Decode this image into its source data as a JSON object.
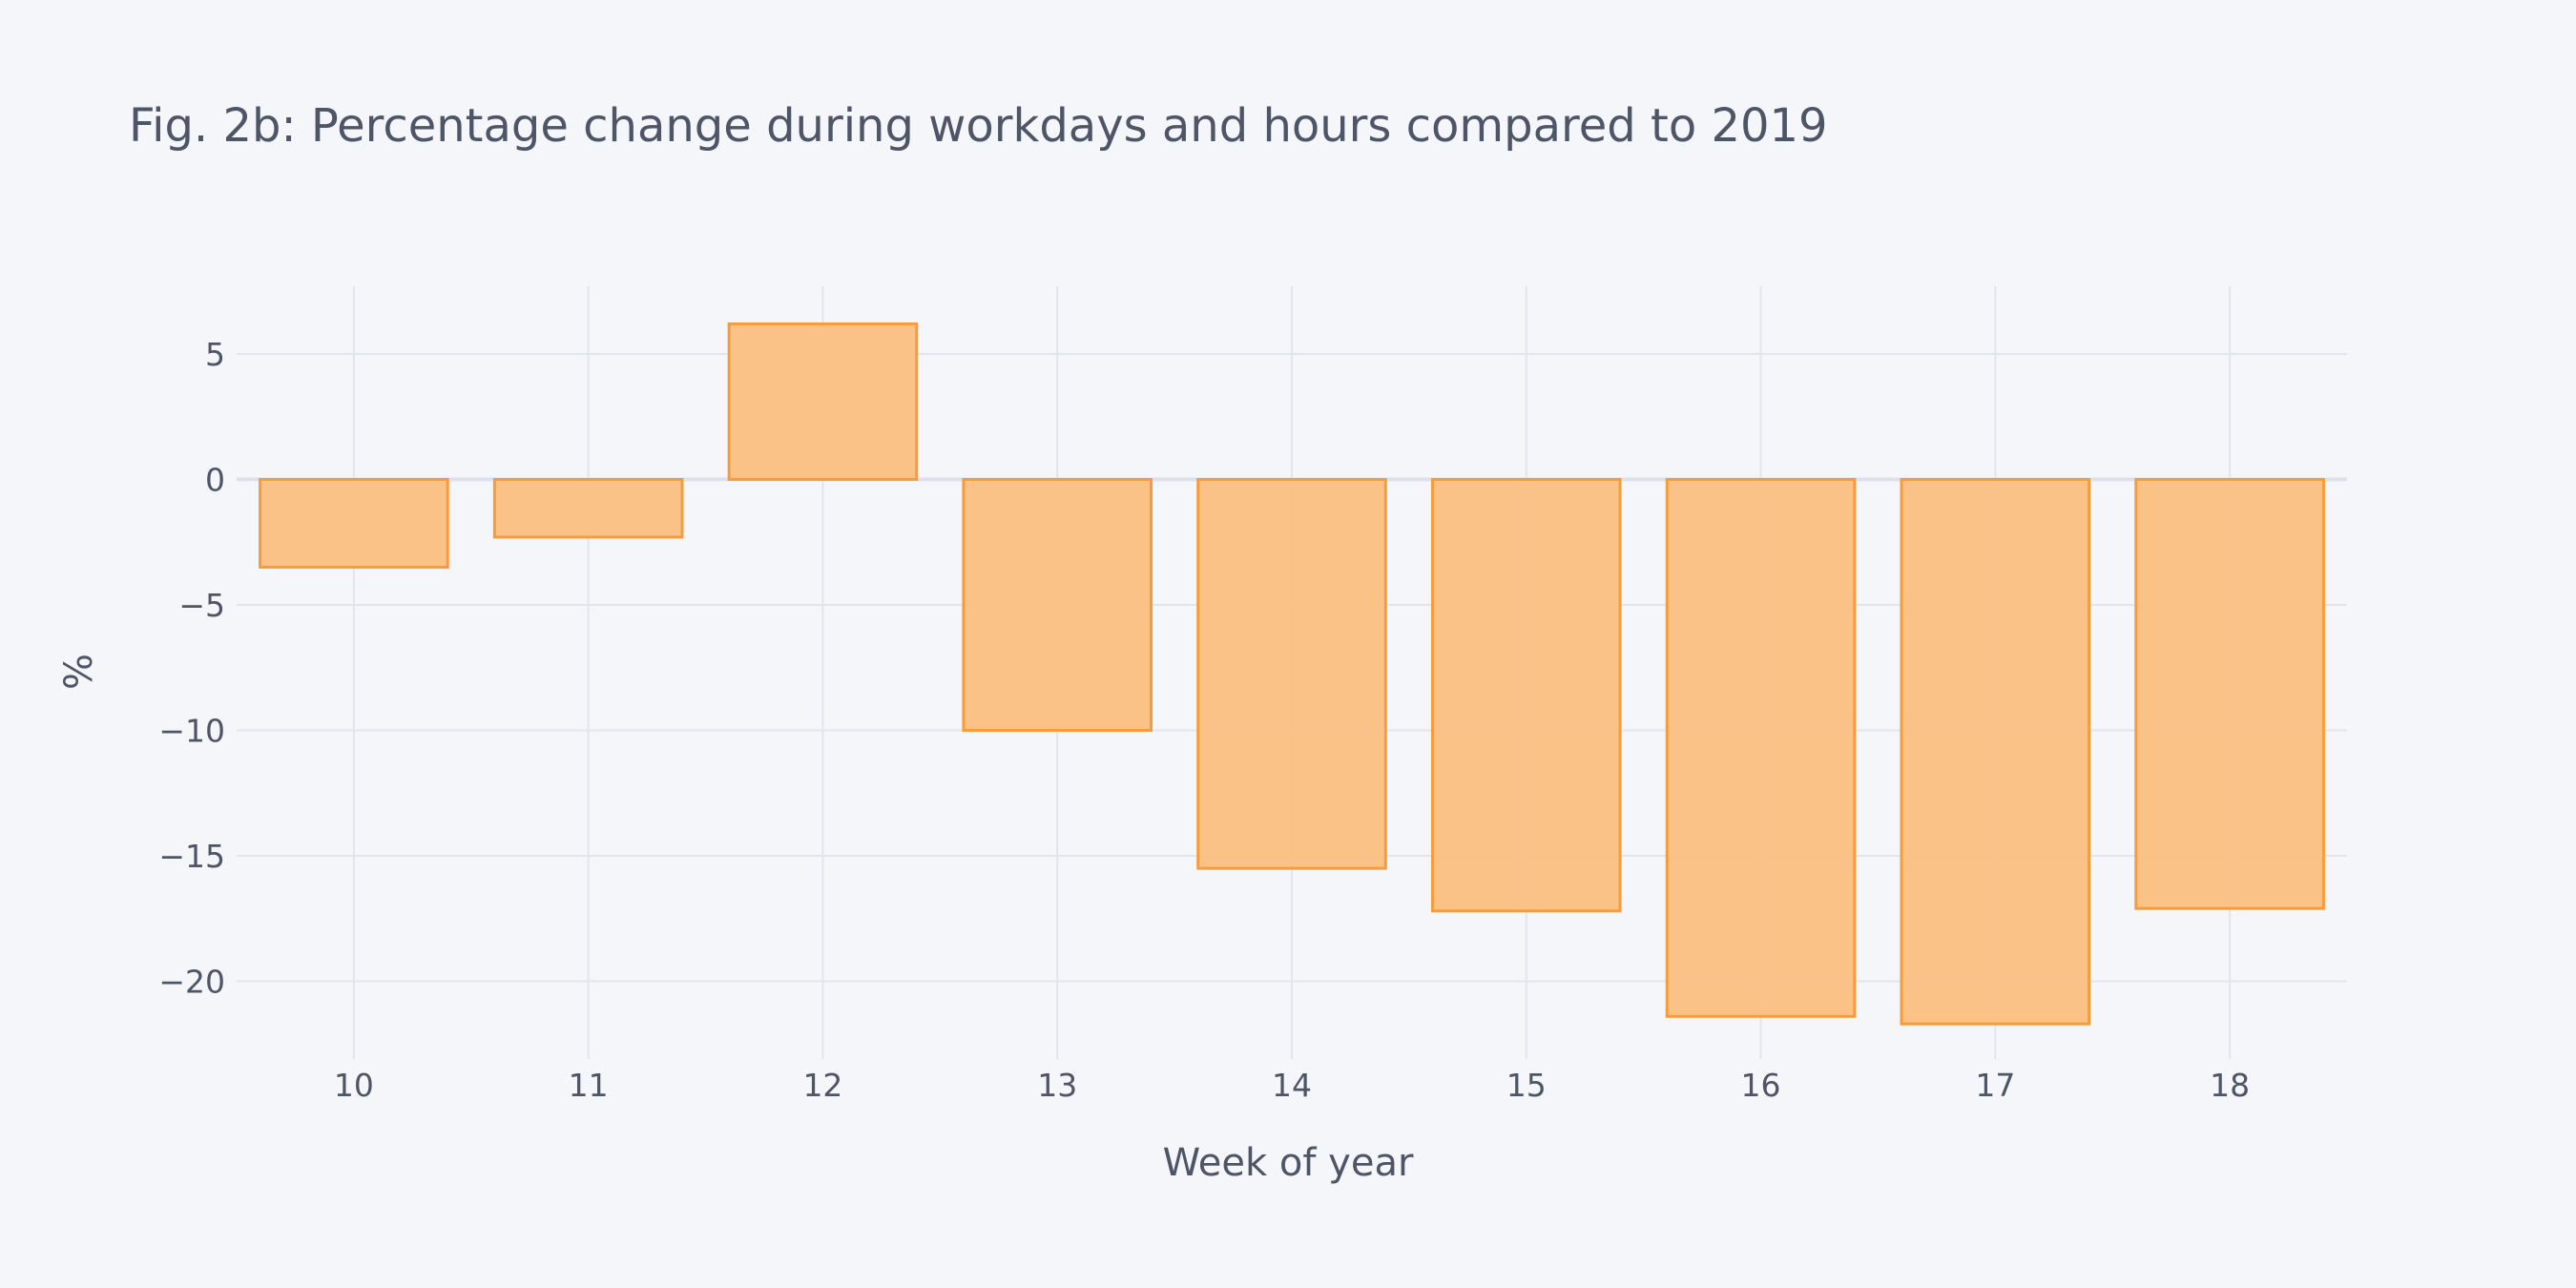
{
  "chart_data": {
    "type": "bar",
    "title": "Fig. 2b: Percentage change during workdays and hours compared to 2019",
    "xlabel": "Week of year",
    "ylabel": "%",
    "categories": [
      "10",
      "11",
      "12",
      "13",
      "14",
      "15",
      "16",
      "17",
      "18"
    ],
    "values": [
      -3.5,
      -2.3,
      6.2,
      -10.0,
      -15.5,
      -17.2,
      -21.4,
      -21.7,
      -17.1
    ],
    "ylim": [
      -23.1,
      7.7
    ],
    "yticks": [
      5,
      0,
      -5,
      -10,
      -15,
      -20
    ],
    "ytick_labels": [
      "5",
      "0",
      "−5",
      "−10",
      "−15",
      "−20"
    ],
    "grid": true,
    "legend": "none",
    "colors": {
      "bar_fill": "#fbbf82",
      "bar_stroke": "#f59c3c",
      "grid": "#e2e5ec",
      "zero_line": "#dde1ee",
      "text": "#4d5566",
      "background": "#f5f6fa"
    }
  }
}
